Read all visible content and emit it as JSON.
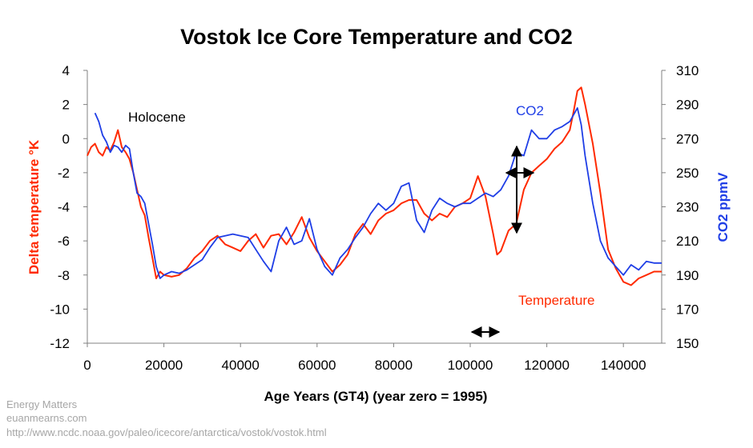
{
  "chart_data": {
    "type": "line",
    "title": "Vostok Ice Core Temperature and CO2",
    "xlabel": "Age Years (GT4) (year zero = 1995)",
    "ylabel_left": "Delta temperature °K",
    "ylabel_right": "CO2 ppmV",
    "xlim": [
      0,
      150000
    ],
    "ylim_left": [
      -12,
      4
    ],
    "ylim_right": [
      150,
      310
    ],
    "x_ticks": [
      0,
      20000,
      40000,
      60000,
      80000,
      100000,
      120000,
      140000
    ],
    "y_ticks_left": [
      4,
      2,
      0,
      -2,
      -4,
      -6,
      -8,
      -10,
      -12
    ],
    "y_ticks_right": [
      310,
      290,
      270,
      250,
      230,
      210,
      190,
      170,
      150
    ],
    "grid": false,
    "legend": "none",
    "colors": {
      "temperature": "#ff2a00",
      "co2": "#1f3ee6",
      "arrows": "#000000"
    },
    "series": [
      {
        "name": "Temperature",
        "axis": "left",
        "color": "#ff2a00",
        "x": [
          0,
          1000,
          2000,
          3000,
          4000,
          5000,
          6000,
          7000,
          8000,
          9000,
          10000,
          11000,
          12000,
          13000,
          14000,
          15000,
          16000,
          17000,
          18000,
          19000,
          20000,
          22000,
          24000,
          26000,
          28000,
          30000,
          32000,
          34000,
          36000,
          38000,
          40000,
          42000,
          44000,
          46000,
          48000,
          50000,
          52000,
          54000,
          56000,
          58000,
          60000,
          62000,
          64000,
          66000,
          68000,
          70000,
          72000,
          74000,
          76000,
          78000,
          80000,
          82000,
          84000,
          86000,
          88000,
          90000,
          92000,
          94000,
          96000,
          98000,
          100000,
          102000,
          104000,
          106000,
          107000,
          108000,
          110000,
          112000,
          114000,
          116000,
          118000,
          120000,
          122000,
          124000,
          126000,
          127000,
          128000,
          129000,
          130000,
          132000,
          134000,
          136000,
          138000,
          140000,
          142000,
          144000,
          146000,
          148000,
          150000
        ],
        "values": [
          -1.0,
          -0.5,
          -0.3,
          -0.8,
          -1.0,
          -0.5,
          -0.7,
          -0.2,
          0.5,
          -0.5,
          -0.8,
          -1.2,
          -2.0,
          -3.0,
          -4.0,
          -4.5,
          -5.8,
          -7.0,
          -8.2,
          -7.8,
          -8.0,
          -8.1,
          -8.0,
          -7.6,
          -7.0,
          -6.6,
          -6.0,
          -5.7,
          -6.2,
          -6.4,
          -6.6,
          -6.0,
          -5.6,
          -6.4,
          -5.7,
          -5.6,
          -6.2,
          -5.5,
          -4.6,
          -5.8,
          -6.6,
          -7.2,
          -7.8,
          -7.4,
          -6.8,
          -5.6,
          -5.0,
          -5.6,
          -4.8,
          -4.4,
          -4.2,
          -3.8,
          -3.6,
          -3.6,
          -4.4,
          -4.8,
          -4.4,
          -4.6,
          -4.0,
          -3.8,
          -3.5,
          -2.2,
          -3.4,
          -5.6,
          -6.8,
          -6.6,
          -5.4,
          -5.0,
          -3.0,
          -2.0,
          -1.6,
          -1.2,
          -0.6,
          -0.2,
          0.5,
          1.6,
          2.8,
          3.0,
          2.0,
          -0.3,
          -3.2,
          -6.5,
          -7.6,
          -8.4,
          -8.6,
          -8.2,
          -8.0,
          -7.8,
          -7.8
        ]
      },
      {
        "name": "CO2",
        "axis": "right",
        "color": "#1f3ee6",
        "x": [
          2000,
          3000,
          4000,
          5000,
          6000,
          7000,
          8000,
          9000,
          10000,
          11000,
          12000,
          13000,
          14000,
          15000,
          16000,
          17000,
          18000,
          19000,
          20000,
          22000,
          24000,
          26000,
          28000,
          30000,
          32000,
          34000,
          36000,
          38000,
          40000,
          42000,
          44000,
          46000,
          48000,
          50000,
          52000,
          54000,
          56000,
          58000,
          60000,
          62000,
          64000,
          66000,
          68000,
          70000,
          72000,
          74000,
          76000,
          78000,
          80000,
          82000,
          84000,
          86000,
          88000,
          90000,
          92000,
          94000,
          96000,
          98000,
          100000,
          102000,
          104000,
          106000,
          108000,
          110000,
          112000,
          114000,
          116000,
          118000,
          120000,
          122000,
          124000,
          126000,
          128000,
          129000,
          130000,
          132000,
          134000,
          136000,
          138000,
          140000,
          142000,
          144000,
          146000,
          148000,
          150000
        ],
        "values": [
          285,
          280,
          272,
          268,
          262,
          266,
          265,
          262,
          266,
          264,
          250,
          238,
          236,
          232,
          220,
          208,
          195,
          188,
          190,
          192,
          191,
          193,
          196,
          199,
          206,
          212,
          213,
          214,
          213,
          212,
          205,
          198,
          192,
          210,
          218,
          208,
          210,
          223,
          205,
          195,
          190,
          200,
          205,
          212,
          218,
          226,
          232,
          228,
          232,
          242,
          244,
          222,
          215,
          228,
          235,
          232,
          230,
          232,
          232,
          235,
          238,
          236,
          240,
          248,
          262,
          260,
          275,
          270,
          270,
          275,
          277,
          280,
          288,
          278,
          260,
          232,
          210,
          200,
          195,
          190,
          196,
          193,
          198,
          197,
          197
        ]
      }
    ],
    "annotations": [
      {
        "label": "Holocene",
        "x": 12000,
        "y": 2
      },
      {
        "label": "CO2",
        "x": 106000,
        "y": 290
      },
      {
        "label": "Temperature",
        "x": 115000,
        "y": -9.4
      }
    ]
  },
  "credits": {
    "line1": "Energy Matters",
    "line2": "euanmearns.com",
    "line3": "http://www.ncdc.noaa.gov/paleo/icecore/antarctica/vostok/vostok.html"
  }
}
